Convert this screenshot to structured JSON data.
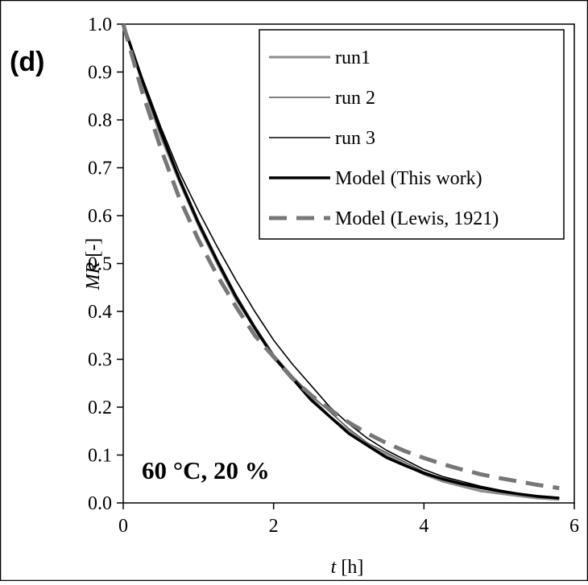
{
  "panel_label": "(d)",
  "annotation": "60 °C, 20 %",
  "chart_data": {
    "type": "line",
    "xlabel": {
      "var": "t",
      "unit": " [h]"
    },
    "ylabel": {
      "var": "MR",
      "unit": " [-]"
    },
    "xlim": [
      0,
      6
    ],
    "ylim": [
      0,
      1
    ],
    "xticks": [
      0,
      2,
      4,
      6
    ],
    "yticks": [
      0.0,
      0.1,
      0.2,
      0.3,
      0.4,
      0.5,
      0.6,
      0.7,
      0.8,
      0.9,
      1.0
    ],
    "grid": false,
    "legend_position": "top-right",
    "series": [
      {
        "name": "run1",
        "color": "#8c8c8c",
        "style": "solid",
        "x": [
          0,
          0.25,
          0.5,
          0.75,
          1.0,
          1.25,
          1.5,
          1.75,
          2.0,
          2.25,
          2.5,
          2.75,
          3.0,
          3.25,
          3.5,
          3.75,
          4.0,
          4.25,
          4.5,
          4.75,
          5.0,
          5.25,
          5.5,
          5.8
        ],
        "y": [
          1.0,
          0.88,
          0.765,
          0.67,
          0.58,
          0.5,
          0.425,
          0.365,
          0.305,
          0.26,
          0.22,
          0.18,
          0.15,
          0.12,
          0.1,
          0.08,
          0.06,
          0.045,
          0.035,
          0.025,
          0.02,
          0.015,
          0.01,
          0.007
        ]
      },
      {
        "name": "run 2",
        "color": "#555555",
        "style": "solid",
        "x": [
          0,
          0.25,
          0.5,
          0.75,
          1.0,
          1.25,
          1.5,
          1.75,
          2.0,
          2.25,
          2.5,
          2.75,
          3.0,
          3.25,
          3.5,
          3.75,
          4.0,
          4.25,
          4.5,
          4.75,
          5.0,
          5.25,
          5.5,
          5.8
        ],
        "y": [
          1.0,
          0.885,
          0.775,
          0.68,
          0.59,
          0.51,
          0.435,
          0.37,
          0.31,
          0.265,
          0.225,
          0.19,
          0.155,
          0.125,
          0.105,
          0.085,
          0.065,
          0.05,
          0.04,
          0.03,
          0.025,
          0.02,
          0.015,
          0.01
        ]
      },
      {
        "name": "run 3",
        "color": "#000000",
        "style": "solid",
        "x": [
          0,
          0.25,
          0.5,
          0.75,
          1.0,
          1.25,
          1.5,
          1.75,
          2.0,
          2.25,
          2.5,
          2.75,
          3.0,
          3.25,
          3.5,
          3.75,
          4.0,
          4.25,
          4.5,
          4.75,
          5.0,
          5.25,
          5.5,
          5.8
        ],
        "y": [
          1.0,
          0.89,
          0.785,
          0.69,
          0.61,
          0.535,
          0.465,
          0.4,
          0.34,
          0.29,
          0.245,
          0.2,
          0.165,
          0.135,
          0.11,
          0.09,
          0.07,
          0.055,
          0.045,
          0.035,
          0.027,
          0.02,
          0.015,
          0.01
        ]
      },
      {
        "name": "Model (This work)",
        "color": "#000000",
        "style": "thick",
        "x": [
          0,
          0.25,
          0.5,
          0.75,
          1.0,
          1.25,
          1.5,
          1.75,
          2.0,
          2.25,
          2.5,
          2.75,
          3.0,
          3.25,
          3.5,
          3.75,
          4.0,
          4.25,
          4.5,
          4.75,
          5.0,
          5.25,
          5.5,
          5.8
        ],
        "y": [
          1.0,
          0.885,
          0.775,
          0.675,
          0.585,
          0.505,
          0.43,
          0.365,
          0.305,
          0.26,
          0.215,
          0.18,
          0.145,
          0.12,
          0.095,
          0.078,
          0.062,
          0.05,
          0.04,
          0.032,
          0.025,
          0.019,
          0.014,
          0.01
        ]
      },
      {
        "name": "Model (Lewis, 1921)",
        "color": "#777777",
        "style": "dashed",
        "x": [
          0,
          0.25,
          0.5,
          0.75,
          1.0,
          1.25,
          1.5,
          1.75,
          2.0,
          2.25,
          2.5,
          2.75,
          3.0,
          3.25,
          3.5,
          3.75,
          4.0,
          4.25,
          4.5,
          4.75,
          5.0,
          5.25,
          5.5,
          5.8
        ],
        "y": [
          1.0,
          0.86,
          0.74,
          0.635,
          0.55,
          0.475,
          0.41,
          0.35,
          0.305,
          0.26,
          0.225,
          0.195,
          0.168,
          0.145,
          0.125,
          0.108,
          0.094,
          0.081,
          0.07,
          0.06,
          0.052,
          0.045,
          0.038,
          0.031
        ]
      }
    ]
  }
}
